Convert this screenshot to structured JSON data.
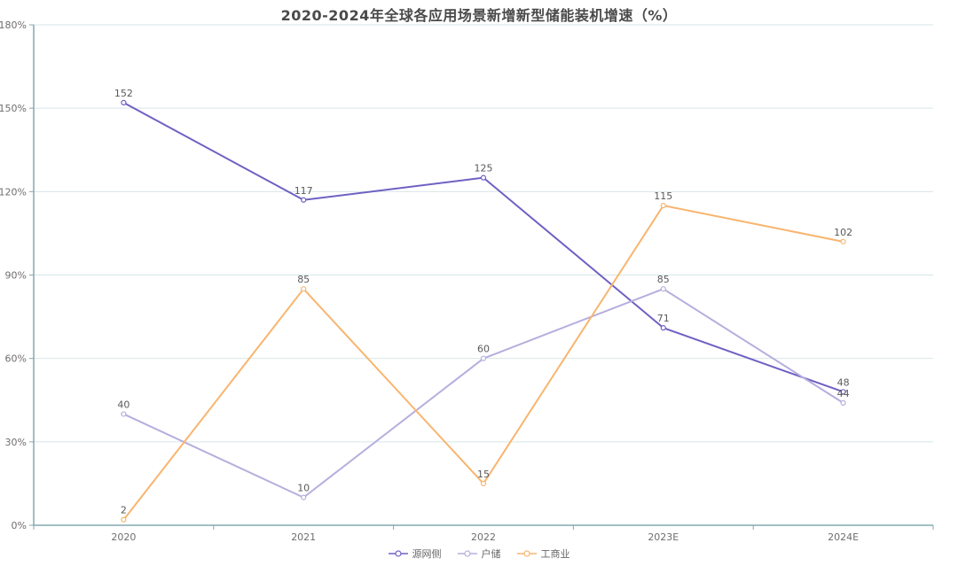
{
  "title": "2020-2024年全球各应用场景新增新型储能装机增速（%）",
  "chart_data": {
    "type": "line",
    "categories": [
      "2020",
      "2021",
      "2022",
      "2023E",
      "2024E"
    ],
    "series": [
      {
        "name": "源网侧",
        "values": [
          152,
          117,
          125,
          71,
          48
        ],
        "color": "#6e61c3"
      },
      {
        "name": "户储",
        "values": [
          40,
          10,
          60,
          85,
          44
        ],
        "color": "#b7aede"
      },
      {
        "name": "工商业",
        "values": [
          2,
          85,
          15,
          115,
          102
        ],
        "color": "#f8b56e"
      }
    ],
    "title": "2020-2024年全球各应用场景新增新型储能装机增速（%）",
    "xlabel": "",
    "ylabel": "",
    "ylim": [
      0,
      180
    ],
    "yticks": [
      0,
      30,
      60,
      90,
      120,
      150,
      180
    ],
    "ytick_suffix": "%",
    "grid": true,
    "legend_position": "bottom",
    "colors": {
      "axis": "#84a8b0",
      "grid": "#d7e6e8",
      "title": "#4a4a4a",
      "label": "#595959"
    }
  }
}
